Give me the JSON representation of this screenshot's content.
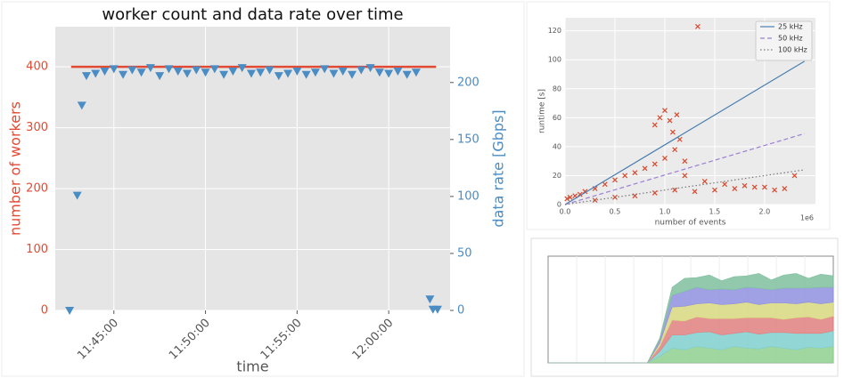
{
  "chart_data": [
    {
      "type": "dual",
      "title": "worker count and data rate over time",
      "xlabel": "time",
      "ylabel": "number of workers",
      "y2label": "data rate [Gbps]",
      "xlim": [
        "11:41:48",
        "12:03:21"
      ],
      "xticks": [
        "11:45:00",
        "11:50:00",
        "11:55:00",
        "12:00:00"
      ],
      "ylim": [
        0,
        466
      ],
      "yticks": [
        0,
        100,
        200,
        300,
        400
      ],
      "y2lim": [
        0,
        249
      ],
      "y2ticks": [
        0,
        50,
        100,
        150,
        200
      ],
      "grid": true,
      "series": [
        {
          "kind": "line",
          "color": "#E24A33",
          "x": [
            "11:42:40",
            "12:02:35"
          ],
          "values": [
            400,
            400
          ]
        },
        {
          "kind": "triangle",
          "axis": "y2",
          "color": "#4a8cc4",
          "x": [
            "11:42:35",
            "11:43:00",
            "11:43:15",
            "11:43:30",
            "11:44:00",
            "11:44:30",
            "11:45:00",
            "11:45:30",
            "11:46:00",
            "11:46:30",
            "11:47:00",
            "11:47:30",
            "11:48:00",
            "11:48:30",
            "11:49:00",
            "11:49:30",
            "11:50:00",
            "11:50:30",
            "11:51:00",
            "11:51:30",
            "11:52:00",
            "11:52:30",
            "11:53:00",
            "11:53:30",
            "11:54:00",
            "11:54:30",
            "11:55:00",
            "11:55:30",
            "11:56:00",
            "11:56:30",
            "11:57:00",
            "11:57:30",
            "11:58:00",
            "11:58:30",
            "11:59:00",
            "11:59:30",
            "12:00:00",
            "12:00:30",
            "12:01:00",
            "12:01:30",
            "12:02:15",
            "12:02:25",
            "12:02:40"
          ],
          "values": [
            0,
            101,
            180,
            206,
            208,
            210,
            212,
            207,
            211,
            209,
            213,
            206,
            212,
            210,
            208,
            211,
            209,
            212,
            207,
            210,
            213,
            208,
            209,
            211,
            206,
            208,
            210,
            207,
            209,
            212,
            208,
            210,
            207,
            211,
            213,
            209,
            208,
            210,
            207,
            209,
            10,
            1,
            1
          ]
        }
      ]
    },
    {
      "type": "scatter",
      "xlabel": "number of events",
      "ylabel": "runtime [s]",
      "x_offset_label": "1e6",
      "xlim": [
        0,
        2510000
      ],
      "ylim": [
        0,
        129
      ],
      "xticks": [
        {
          "value": 0,
          "label": "0.0"
        },
        {
          "value": 500000,
          "label": "0.5"
        },
        {
          "value": 1000000,
          "label": "1.0"
        },
        {
          "value": 1500000,
          "label": "1.5"
        },
        {
          "value": 2000000,
          "label": "2.0"
        }
      ],
      "yticks": [
        0,
        20,
        40,
        60,
        80,
        100,
        120
      ],
      "grid": true,
      "legend": "upper-right",
      "series": [
        {
          "kind": "cross",
          "color": "#D8492E",
          "x": [
            20000,
            50000,
            100000,
            150000,
            200000,
            300000,
            400000,
            500000,
            600000,
            700000,
            800000,
            900000,
            1000000,
            1100000,
            1200000,
            1400000,
            1600000,
            1800000,
            2000000,
            2200000,
            900000,
            950000,
            1000000,
            1050000,
            1080000,
            1120000,
            1150000,
            1200000,
            1330000,
            2300000,
            300000,
            500000,
            700000,
            900000,
            1100000,
            1300000,
            1500000,
            1700000,
            1900000,
            2100000
          ],
          "values": [
            4,
            5,
            6,
            7,
            9,
            11,
            14,
            17,
            20,
            22,
            25,
            28,
            32,
            38,
            20,
            16,
            14,
            13,
            12,
            11,
            55,
            60,
            65,
            58,
            50,
            62,
            45,
            30,
            123,
            20,
            3,
            5,
            6,
            8,
            10,
            9,
            10,
            11,
            12,
            10
          ]
        },
        {
          "kind": "line",
          "name": "25 kHz",
          "color": "#4a7fb0",
          "dash": "none",
          "x": [
            0,
            2400000
          ],
          "values": [
            0,
            99
          ]
        },
        {
          "kind": "line",
          "name": "50 kHz",
          "color": "#9b7fd4",
          "dash": "5 3",
          "x": [
            0,
            2400000
          ],
          "values": [
            0,
            49
          ]
        },
        {
          "kind": "line",
          "name": "100 kHz",
          "color": "#777777",
          "dash": "1.5 2.5",
          "x": [
            0,
            2400000
          ],
          "values": [
            0,
            24
          ]
        }
      ]
    },
    {
      "type": "stacked_area",
      "ylim": [
        0,
        6.5
      ],
      "series": [
        {
          "color": "#8fcf8f",
          "values": [
            0,
            0,
            0,
            0,
            0,
            0,
            0,
            0,
            0,
            0.4,
            0.9,
            0.8,
            1.0,
            0.9,
            0.8,
            1.0,
            0.9,
            0.85,
            1.0,
            0.9,
            0.8,
            0.95,
            0.9,
            1.0
          ]
        },
        {
          "color": "#7fcfcf",
          "values": [
            0,
            0,
            0,
            0,
            0,
            0,
            0,
            0,
            0,
            0.3,
            0.8,
            0.9,
            0.85,
            1.0,
            0.9,
            0.8,
            1.0,
            0.9,
            0.85,
            0.95,
            1.0,
            0.85,
            0.9,
            0.95
          ]
        },
        {
          "color": "#e07f7f",
          "values": [
            0,
            0,
            0,
            0,
            0,
            0,
            0,
            0,
            0,
            0.3,
            0.9,
            0.85,
            0.95,
            0.8,
            1.0,
            0.9,
            0.85,
            1.0,
            0.9,
            0.8,
            0.95,
            1.0,
            0.85,
            0.9
          ]
        },
        {
          "color": "#d8d880",
          "values": [
            0,
            0,
            0,
            0,
            0,
            0,
            0,
            0,
            0,
            0.2,
            0.8,
            0.9,
            0.8,
            0.95,
            0.85,
            0.9,
            0.95,
            0.8,
            0.9,
            1.0,
            0.85,
            0.9,
            0.95,
            0.85
          ]
        },
        {
          "color": "#8f8fe0",
          "values": [
            0,
            0,
            0,
            0,
            0,
            0,
            0,
            0,
            0,
            0.2,
            0.7,
            0.9,
            1.0,
            0.8,
            0.95,
            0.85,
            0.9,
            1.0,
            0.8,
            0.9,
            0.95,
            0.85,
            1.0,
            0.9
          ]
        },
        {
          "color": "#7fbf9f",
          "values": [
            0,
            0,
            0,
            0,
            0,
            0,
            0,
            0,
            0,
            0.1,
            0.5,
            0.8,
            0.6,
            0.9,
            0.5,
            0.8,
            0.7,
            0.9,
            0.6,
            0.8,
            0.9,
            0.6,
            0.8,
            0.7
          ]
        }
      ]
    }
  ]
}
